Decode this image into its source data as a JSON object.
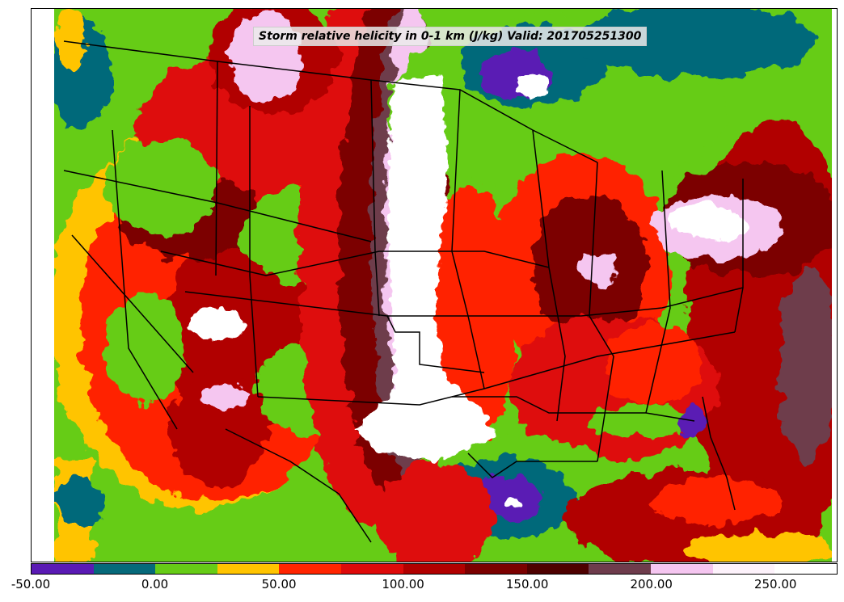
{
  "map": {
    "title": "Storm relative helicity in 0-1 km (J/kg) Valid: 201705251300"
  },
  "colorbar": {
    "range": [
      -50,
      275
    ],
    "bins": [
      {
        "from": -50,
        "to": -25,
        "color": "#5a1ab4"
      },
      {
        "from": -25,
        "to": 0,
        "color": "#06697a"
      },
      {
        "from": 0,
        "to": 25,
        "color": "#66cc16"
      },
      {
        "from": 25,
        "to": 50,
        "color": "#ffc400"
      },
      {
        "from": 50,
        "to": 75,
        "color": "#ff2400"
      },
      {
        "from": 75,
        "to": 100,
        "color": "#de0a0a"
      },
      {
        "from": 100,
        "to": 125,
        "color": "#b10000"
      },
      {
        "from": 125,
        "to": 150,
        "color": "#7b0000"
      },
      {
        "from": 150,
        "to": 175,
        "color": "#4e0000"
      },
      {
        "from": 175,
        "to": 200,
        "color": "#6e3c4c"
      },
      {
        "from": 200,
        "to": 225,
        "color": "#f5c6f0"
      },
      {
        "from": 225,
        "to": 250,
        "color": "#fdf2fb"
      },
      {
        "from": 250,
        "to": 275,
        "color": "#ffffff"
      }
    ],
    "ticks": [
      {
        "value": -50,
        "label": "-50.00"
      },
      {
        "value": 0,
        "label": "0.00"
      },
      {
        "value": 50,
        "label": "50.00"
      },
      {
        "value": 100,
        "label": "100.00"
      },
      {
        "value": 150,
        "label": "150.00"
      },
      {
        "value": 200,
        "label": "200.00"
      },
      {
        "value": 250,
        "label": "250.00"
      }
    ]
  }
}
